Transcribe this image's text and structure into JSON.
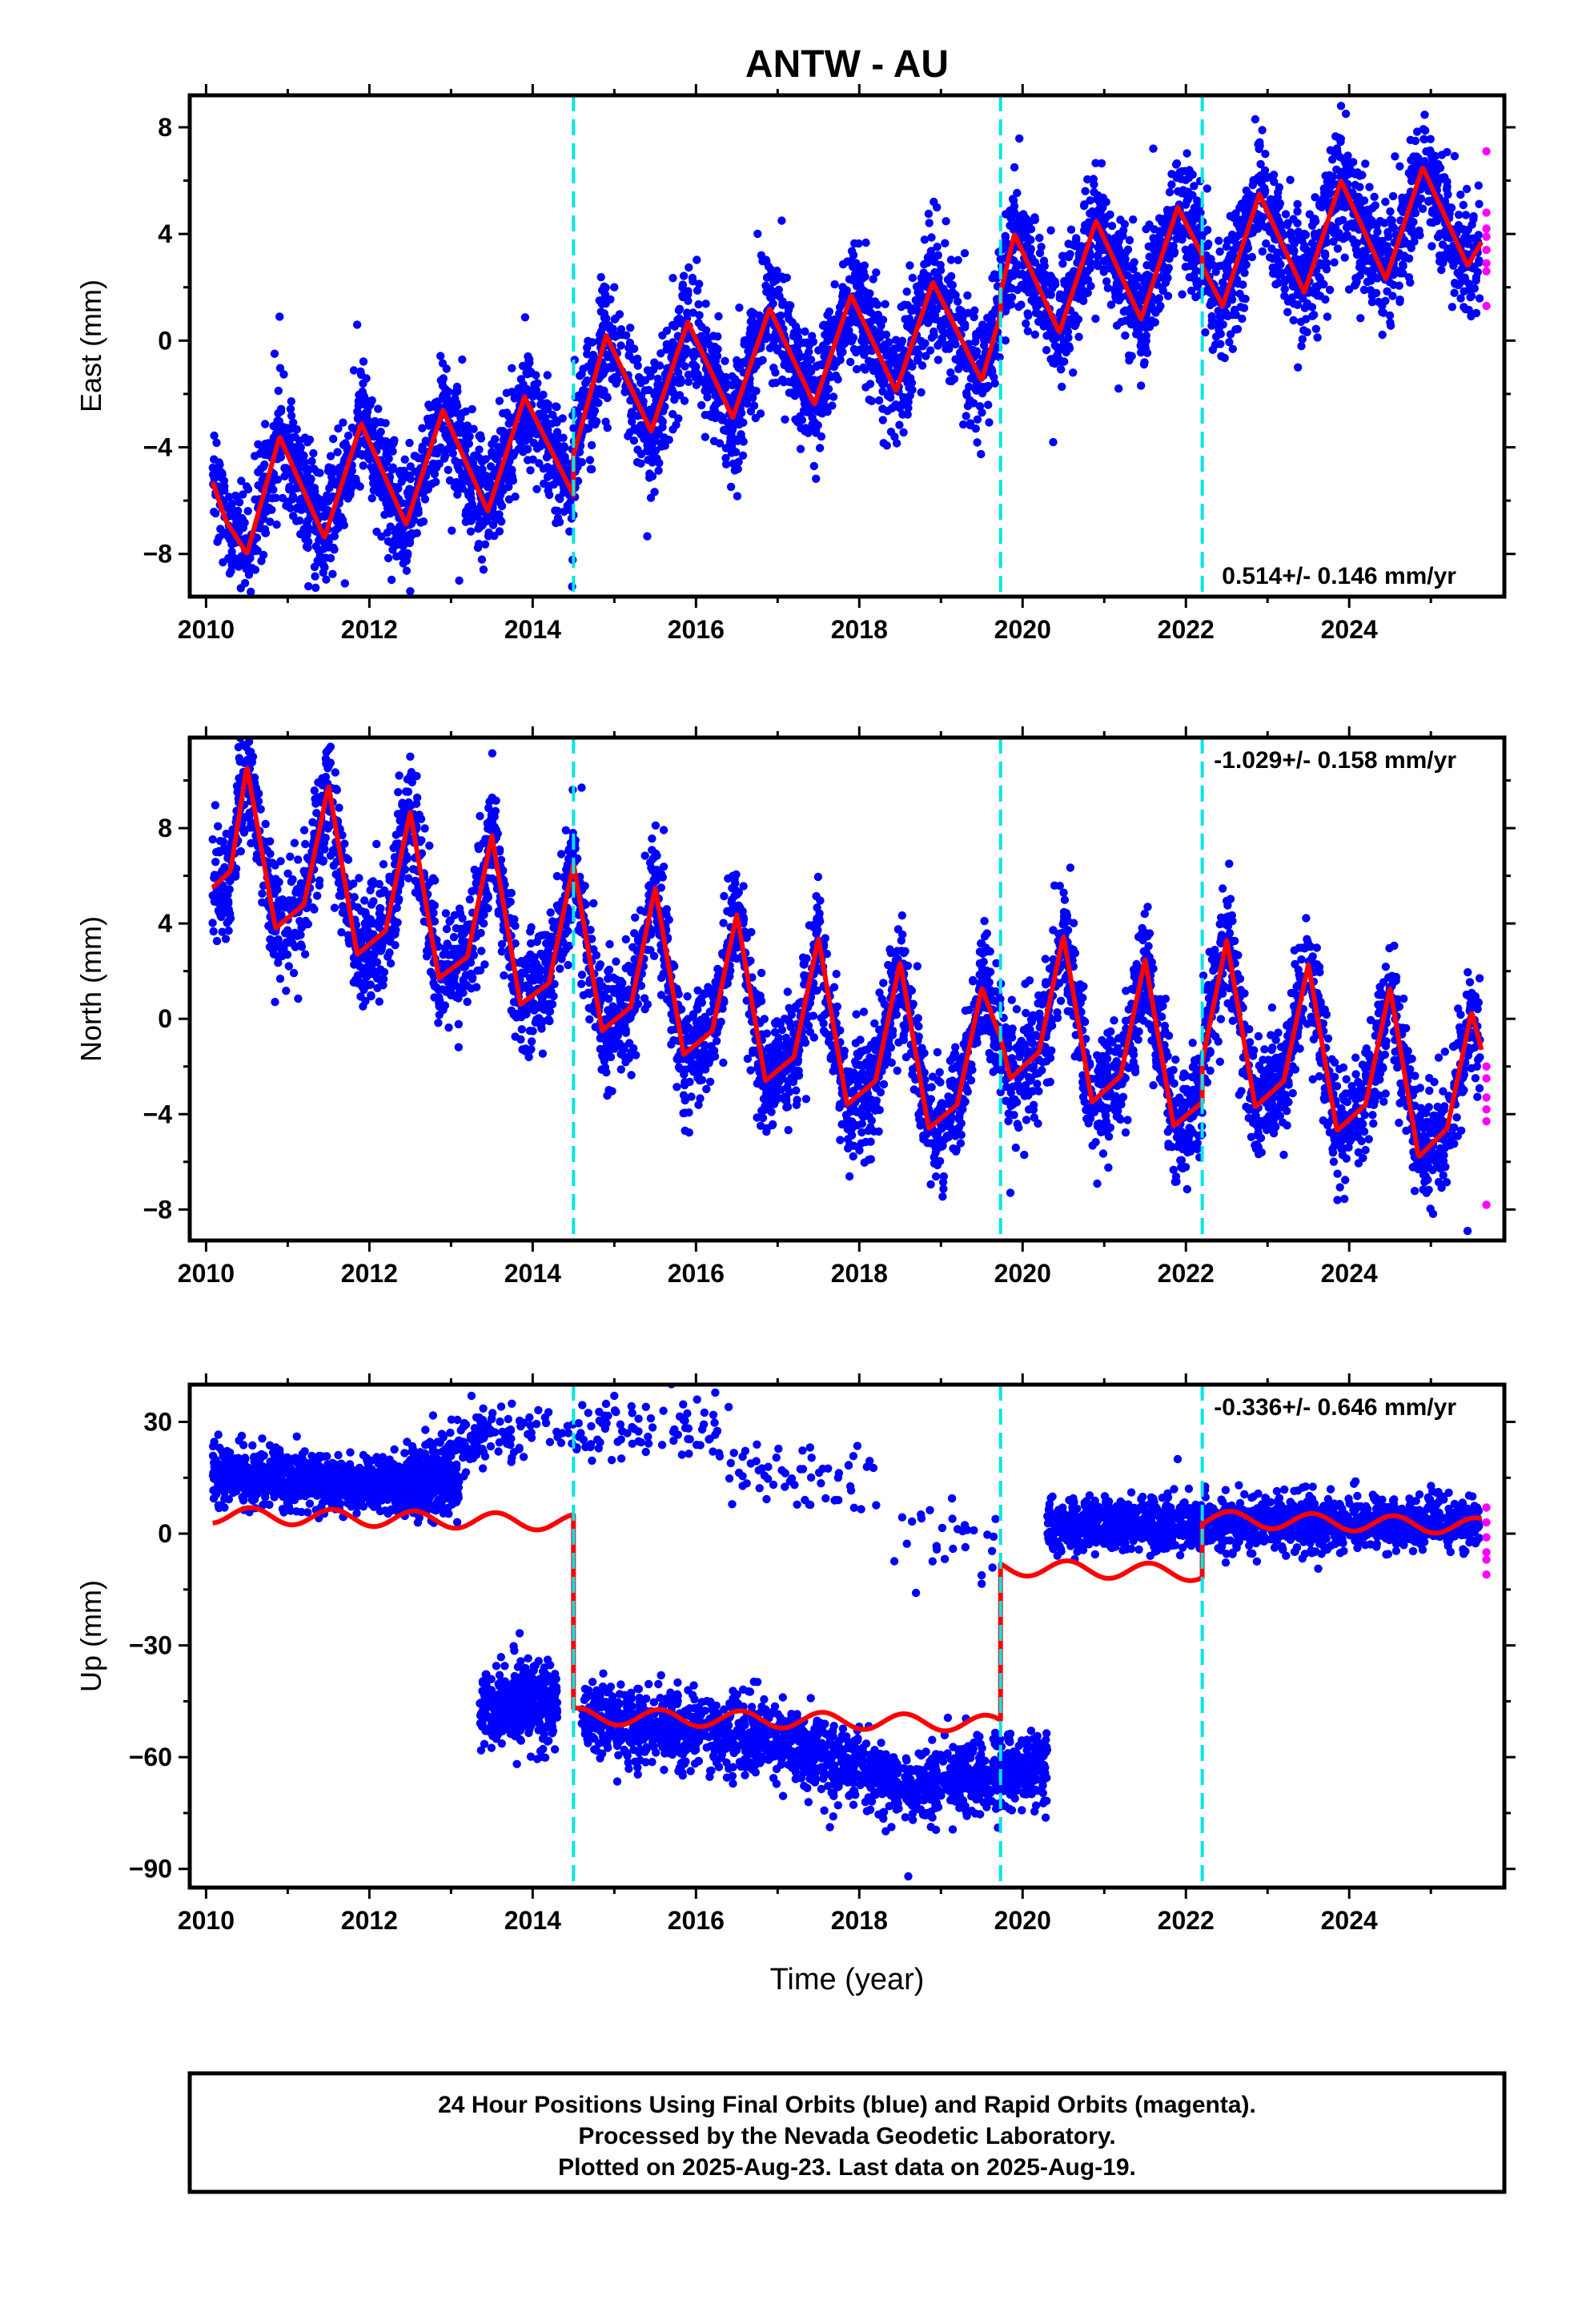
{
  "title": "ANTW - AU",
  "x_axis_label": "Time (year)",
  "footer": {
    "line1": "24 Hour Positions Using Final Orbits (blue) and Rapid Orbits (magenta).",
    "line2": "Processed by the Nevada Geodetic Laboratory.",
    "line3": "Plotted on 2025-Aug-23. Last data on 2025-Aug-19."
  },
  "colors": {
    "final_orbits": "#0000ff",
    "rapid_orbits": "#ff00ff",
    "model_fit": "#ff0000",
    "equipment_change": "#00e5e5"
  },
  "chart_data": [
    {
      "type": "scatter",
      "panel": "east",
      "ylabel": "East (mm)",
      "rate_label": "0.514+/- 0.146 mm/yr",
      "xlim": [
        2009.8,
        2025.9
      ],
      "ylim": [
        -9.6,
        9.2
      ],
      "x_ticks": [
        2010,
        2012,
        2014,
        2016,
        2018,
        2020,
        2022,
        2024
      ],
      "y_ticks": [
        -8,
        -4,
        0,
        4,
        8
      ],
      "grid": false,
      "equipment_changes": [
        2014.5,
        2019.73,
        2022.2
      ],
      "model_fit": {
        "segments": [
          {
            "from": 2010.08,
            "to": 2014.5,
            "points": [
              [
                2010.08,
                -5.3
              ],
              [
                2010.25,
                -6.8
              ],
              [
                2010.5,
                -8.0
              ],
              [
                2010.9,
                -3.6
              ],
              [
                2011.45,
                -7.4
              ],
              [
                2011.9,
                -3.1
              ],
              [
                2012.45,
                -6.9
              ],
              [
                2012.9,
                -2.6
              ],
              [
                2013.45,
                -6.4
              ],
              [
                2013.9,
                -2.1
              ],
              [
                2014.5,
                -5.8
              ]
            ]
          },
          {
            "from": 2014.5,
            "to": 2019.73,
            "points": [
              [
                2014.5,
                -4.3
              ],
              [
                2014.9,
                0.2
              ],
              [
                2015.45,
                -3.4
              ],
              [
                2015.9,
                0.7
              ],
              [
                2016.45,
                -2.9
              ],
              [
                2016.9,
                1.2
              ],
              [
                2017.45,
                -2.4
              ],
              [
                2017.9,
                1.7
              ],
              [
                2018.45,
                -1.9
              ],
              [
                2018.9,
                2.2
              ],
              [
                2019.5,
                -1.5
              ],
              [
                2019.73,
                1.0
              ]
            ]
          },
          {
            "from": 2019.73,
            "to": 2022.2,
            "points": [
              [
                2019.73,
                1.8
              ],
              [
                2019.9,
                4.0
              ],
              [
                2020.45,
                0.3
              ],
              [
                2020.9,
                4.5
              ],
              [
                2021.45,
                0.8
              ],
              [
                2021.9,
                5.0
              ],
              [
                2022.2,
                3.2
              ]
            ]
          },
          {
            "from": 2022.2,
            "to": 2025.62,
            "points": [
              [
                2022.2,
                2.8
              ],
              [
                2022.45,
                1.3
              ],
              [
                2022.9,
                5.5
              ],
              [
                2023.45,
                1.8
              ],
              [
                2023.9,
                6.0
              ],
              [
                2024.45,
                2.3
              ],
              [
                2024.9,
                6.5
              ],
              [
                2025.45,
                2.8
              ],
              [
                2025.62,
                3.7
              ]
            ]
          }
        ]
      },
      "series": [
        {
          "name": "Final Orbits (blue)",
          "color": "#0000ff",
          "x_range": [
            2010.08,
            2025.6
          ],
          "gaps": [],
          "count": 4800,
          "scatter_sd": 1.1,
          "outliers": [
            [
              2010.9,
              0.9
            ],
            [
              2011.7,
              -9.1
            ],
            [
              2011.85,
              0.6
            ],
            [
              2012.5,
              -9.4
            ],
            [
              2013.1,
              -9.0
            ],
            [
              2015.0,
              2.0
            ],
            [
              2016.8,
              3.2
            ],
            [
              2017.05,
              4.5
            ],
            [
              2018.95,
              5.0
            ],
            [
              2019.9,
              6.5
            ],
            [
              2021.6,
              7.2
            ],
            [
              2022.85,
              8.3
            ],
            [
              2023.9,
              8.8
            ]
          ]
        },
        {
          "name": "Rapid Orbits (magenta)",
          "color": "#ff00ff",
          "points": [
            [
              2025.68,
              7.1
            ],
            [
              2025.68,
              4.8
            ],
            [
              2025.68,
              4.2
            ],
            [
              2025.68,
              3.9
            ],
            [
              2025.68,
              3.4
            ],
            [
              2025.68,
              2.9
            ],
            [
              2025.68,
              2.6
            ],
            [
              2025.68,
              1.3
            ]
          ]
        }
      ]
    },
    {
      "type": "scatter",
      "panel": "north",
      "ylabel": "North (mm)",
      "rate_label": "-1.029+/- 0.158 mm/yr",
      "xlim": [
        2009.8,
        2025.9
      ],
      "ylim": [
        -9.3,
        11.8
      ],
      "x_ticks": [
        2010,
        2012,
        2014,
        2016,
        2018,
        2020,
        2022,
        2024
      ],
      "y_ticks": [
        -8,
        -4,
        0,
        4,
        8
      ],
      "grid": false,
      "equipment_changes": [
        2014.5,
        2019.73,
        2022.2
      ],
      "model_fit": {
        "segments": [
          {
            "from": 2010.08,
            "to": 2014.5,
            "points": [
              [
                2010.08,
                5.5
              ],
              [
                2010.3,
                6.2
              ],
              [
                2010.5,
                10.6
              ],
              [
                2010.85,
                3.8
              ],
              [
                2011.2,
                4.8
              ],
              [
                2011.5,
                9.8
              ],
              [
                2011.85,
                2.7
              ],
              [
                2012.2,
                3.7
              ],
              [
                2012.5,
                8.7
              ],
              [
                2012.85,
                1.7
              ],
              [
                2013.2,
                2.6
              ],
              [
                2013.5,
                7.7
              ],
              [
                2013.85,
                0.6
              ],
              [
                2014.2,
                1.5
              ],
              [
                2014.5,
                6.5
              ]
            ]
          },
          {
            "from": 2014.5,
            "to": 2019.73,
            "points": [
              [
                2014.5,
                6.5
              ],
              [
                2014.85,
                -0.5
              ],
              [
                2015.2,
                0.5
              ],
              [
                2015.5,
                5.5
              ],
              [
                2015.85,
                -1.5
              ],
              [
                2016.2,
                -0.5
              ],
              [
                2016.5,
                4.4
              ],
              [
                2016.85,
                -2.6
              ],
              [
                2017.2,
                -1.6
              ],
              [
                2017.5,
                3.4
              ],
              [
                2017.85,
                -3.6
              ],
              [
                2018.2,
                -2.6
              ],
              [
                2018.5,
                2.4
              ],
              [
                2018.85,
                -4.6
              ],
              [
                2019.2,
                -3.6
              ],
              [
                2019.5,
                1.3
              ],
              [
                2019.73,
                -0.8
              ]
            ]
          },
          {
            "from": 2019.73,
            "to": 2022.2,
            "points": [
              [
                2019.73,
                -0.8
              ],
              [
                2019.85,
                -2.5
              ],
              [
                2020.2,
                -1.4
              ],
              [
                2020.5,
                3.5
              ],
              [
                2020.85,
                -3.5
              ],
              [
                2021.2,
                -2.4
              ],
              [
                2021.5,
                2.5
              ],
              [
                2021.85,
                -4.5
              ],
              [
                2022.2,
                -3.5
              ]
            ]
          },
          {
            "from": 2022.2,
            "to": 2025.62,
            "points": [
              [
                2022.2,
                -1.8
              ],
              [
                2022.5,
                3.3
              ],
              [
                2022.85,
                -3.7
              ],
              [
                2023.2,
                -2.6
              ],
              [
                2023.5,
                2.3
              ],
              [
                2023.85,
                -4.7
              ],
              [
                2024.2,
                -3.6
              ],
              [
                2024.5,
                1.3
              ],
              [
                2024.85,
                -5.8
              ],
              [
                2025.2,
                -4.6
              ],
              [
                2025.5,
                0.3
              ],
              [
                2025.62,
                -1.3
              ]
            ]
          }
        ]
      },
      "series": [
        {
          "name": "Final Orbits (blue)",
          "color": "#0000ff",
          "x_range": [
            2010.08,
            2025.6
          ],
          "gaps": [],
          "count": 4800,
          "scatter_sd": 1.2,
          "outliers": [
            [
              2010.45,
              11.5
            ],
            [
              2011.5,
              11.3
            ],
            [
              2012.5,
              11.0
            ],
            [
              2014.6,
              9.7
            ],
            [
              2019.85,
              -7.3
            ],
            [
              2025.45,
              -8.9
            ],
            [
              2025.5,
              0.9
            ]
          ]
        },
        {
          "name": "Rapid Orbits (magenta)",
          "color": "#ff00ff",
          "points": [
            [
              2025.68,
              -2.0
            ],
            [
              2025.68,
              -2.5
            ],
            [
              2025.68,
              -3.3
            ],
            [
              2025.68,
              -3.8
            ],
            [
              2025.68,
              -4.3
            ],
            [
              2025.68,
              -7.8
            ]
          ]
        }
      ]
    },
    {
      "type": "scatter",
      "panel": "up",
      "ylabel": "Up (mm)",
      "rate_label": "-0.336+/- 0.646 mm/yr",
      "xlim": [
        2009.8,
        2025.9
      ],
      "ylim": [
        -95,
        40
      ],
      "x_ticks": [
        2010,
        2012,
        2014,
        2016,
        2018,
        2020,
        2022,
        2024
      ],
      "y_ticks": [
        -90,
        -60,
        -30,
        0,
        30
      ],
      "grid": false,
      "equipment_changes": [
        2014.5,
        2019.73,
        2022.2
      ],
      "model_fit": {
        "segments": [
          {
            "from": 2010.08,
            "to": 2014.5,
            "base": [
              [
                2010.08,
                5
              ],
              [
                2014.5,
                3
              ]
            ],
            "amplitude": 2.2
          },
          {
            "from": 2014.5,
            "to": 2019.73,
            "base": [
              [
                2014.5,
                -49
              ],
              [
                2019.73,
                -51
              ]
            ],
            "amplitude": 2.2
          },
          {
            "from": 2019.73,
            "to": 2022.2,
            "base": [
              [
                2019.73,
                -9
              ],
              [
                2022.2,
                -10.5
              ]
            ],
            "amplitude": 2.2
          },
          {
            "from": 2022.2,
            "to": 2025.62,
            "base": [
              [
                2022.2,
                4
              ],
              [
                2025.62,
                2
              ]
            ],
            "amplitude": 2.2
          }
        ]
      },
      "series": [
        {
          "name": "Final Orbits (blue)",
          "color": "#0000ff",
          "clusters": [
            {
              "x_range": [
                2010.08,
                2013.1
              ],
              "center": [
                [
                  2010.08,
                  16
                ],
                [
                  2013.1,
                  12
                ]
              ],
              "count": 1100,
              "scatter_sd": 3.8
            },
            {
              "x_range": [
                2012.4,
                2013.5
              ],
              "center": [
                [
                  2012.4,
                  14
                ],
                [
                  2013.5,
                  28
                ]
              ],
              "count": 180,
              "scatter_sd": 4.0
            },
            {
              "x_range": [
                2013.35,
                2014.3
              ],
              "center": [
                [
                  2013.35,
                  -47
                ],
                [
                  2014.3,
                  -45
                ]
              ],
              "count": 420,
              "scatter_sd": 5.0
            },
            {
              "x_range": [
                2013.5,
                2016.3
              ],
              "center": [
                [
                  2013.5,
                  27
                ],
                [
                  2016.3,
                  28
                ]
              ],
              "count": 130,
              "scatter_sd": 4.0
            },
            {
              "x_range": [
                2016.4,
                2018.2
              ],
              "center": [
                [
                  2016.4,
                  18
                ],
                [
                  2018.2,
                  12
                ]
              ],
              "count": 60,
              "scatter_sd": 5.0
            },
            {
              "x_range": [
                2018.2,
                2019.7
              ],
              "center": [
                [
                  2018.2,
                  0
                ],
                [
                  2019.7,
                  -3
                ]
              ],
              "count": 30,
              "scatter_sd": 6.0
            },
            {
              "x_range": [
                2014.6,
                2020.3
              ],
              "center": [
                [
                  2014.6,
                  -50
                ],
                [
                  2017.0,
                  -55
                ],
                [
                  2018.6,
                  -68
                ],
                [
                  2020.3,
                  -63
                ]
              ],
              "count": 1700,
              "scatter_sd": 5.0
            },
            {
              "x_range": [
                2020.3,
                2025.6
              ],
              "center": [
                [
                  2020.3,
                  2
                ],
                [
                  2025.6,
                  3
                ]
              ],
              "count": 1600,
              "scatter_sd": 3.5
            }
          ],
          "outliers": [
            [
              2013.25,
              37
            ],
            [
              2015.0,
              37
            ],
            [
              2016.4,
              34
            ],
            [
              2018.6,
              -92
            ],
            [
              2020.3,
              -58
            ],
            [
              2021.9,
              20
            ]
          ]
        },
        {
          "name": "Rapid Orbits (magenta)",
          "color": "#ff00ff",
          "points": [
            [
              2025.68,
              7
            ],
            [
              2025.68,
              3
            ],
            [
              2025.68,
              -1
            ],
            [
              2025.68,
              -5
            ],
            [
              2025.68,
              -7
            ],
            [
              2025.68,
              -11
            ]
          ]
        }
      ]
    }
  ]
}
